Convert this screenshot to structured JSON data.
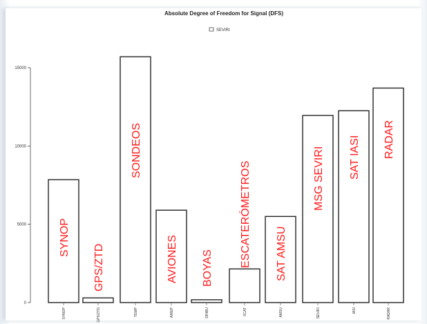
{
  "chart_data": {
    "type": "bar",
    "title": "Absolute Degree of Freedom for Signal (DFS)",
    "legend": {
      "entries": [
        "SEVIRI"
      ],
      "placement": "top-center"
    },
    "categories": [
      "SYNOP",
      "GPS/ZTD",
      "TEMP",
      "AIREP",
      "DRIBU",
      "SCAT",
      "AMSU",
      "SEVIRI",
      "IASI",
      "RADAR"
    ],
    "values": [
      7850,
      300,
      15700,
      5900,
      180,
      2150,
      5500,
      11950,
      12250,
      13700
    ],
    "annotations": [
      "SYNOP",
      "GPS/ZTD",
      "SONDEOS",
      "AVIONES",
      "BOYAS",
      "ESCATERÓMETROS",
      "SAT AMSU",
      "MSG SEVIRI",
      "SAT IASI",
      "RADAR"
    ],
    "yticks": [
      0,
      5000,
      10000,
      15000
    ],
    "ylim": [
      0,
      16500
    ],
    "colors": {
      "bar_fill": "#ffffff",
      "bar_stroke": "#222222",
      "annotation": "#ff1a1a"
    },
    "grid": false
  }
}
